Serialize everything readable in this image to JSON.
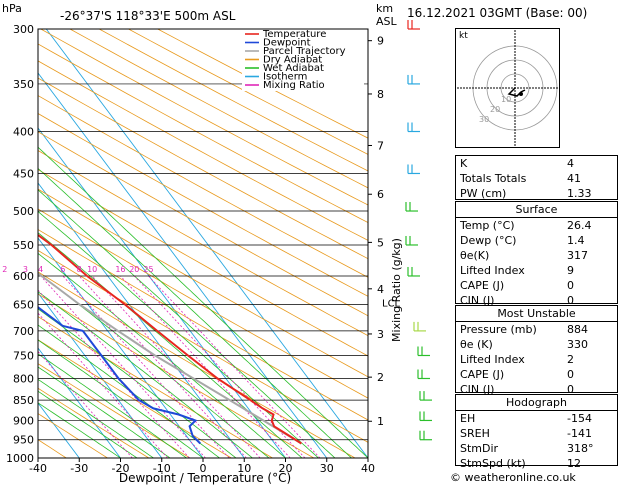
{
  "header": {
    "hpa_label": "hPa",
    "location": "-26°37'S  118°33'E  500m  ASL",
    "km_label": "km",
    "asl_label": "ASL",
    "datetime": "16.12.2021  03GMT  (Base: 00)"
  },
  "legend": [
    {
      "label": "Temperature",
      "color": "#e8251f"
    },
    {
      "label": "Dewpoint",
      "color": "#1f49d8"
    },
    {
      "label": "Parcel Trajectory",
      "color": "#a8a8a8"
    },
    {
      "label": "Dry Adiabat",
      "color": "#e89a1e"
    },
    {
      "label": "Wet Adiabat",
      "color": "#2bbf2b"
    },
    {
      "label": "Isotherm",
      "color": "#2aa8e0"
    },
    {
      "label": "Mixing Ratio",
      "color": "#e028b8"
    }
  ],
  "chart_data": {
    "type": "skew-t",
    "x_axis": {
      "label": "Dewpoint / Temperature (°C)",
      "ticks": [
        -40,
        -30,
        -20,
        -10,
        0,
        10,
        20,
        30,
        40
      ]
    },
    "pressure_levels": [
      300,
      350,
      400,
      450,
      500,
      550,
      600,
      650,
      700,
      750,
      800,
      850,
      900,
      950,
      1000
    ],
    "km_ticks": [
      {
        "km": "1",
        "p": 902
      },
      {
        "km": "2",
        "p": 797
      },
      {
        "km": "3",
        "p": 706
      },
      {
        "km": "4",
        "p": 622
      },
      {
        "km": "5",
        "p": 546
      },
      {
        "km": "6",
        "p": 477
      },
      {
        "km": "7",
        "p": 416
      },
      {
        "km": "8",
        "p": 360
      },
      {
        "km": "9",
        "p": 310
      }
    ],
    "lcl_label": "LCL",
    "lcl_pressure": 646,
    "mixing_ratio_axis_label": "Mixing Ratio (g/kg)",
    "mixing_ratio_labels": [
      "1",
      "2",
      "3",
      "4",
      "6",
      "8",
      "10",
      "16",
      "20",
      "25"
    ],
    "mixing_ratio_values": [
      1,
      2,
      3,
      4,
      6,
      8,
      10,
      16,
      20,
      25
    ],
    "temperature": [
      [
        960,
        26.5
      ],
      [
        940,
        25
      ],
      [
        915,
        23
      ],
      [
        900,
        23.5
      ],
      [
        885,
        25
      ],
      [
        870,
        23.5
      ],
      [
        850,
        22
      ],
      [
        800,
        18
      ],
      [
        750,
        15
      ],
      [
        700,
        12
      ],
      [
        650,
        9
      ],
      [
        600,
        5
      ],
      [
        550,
        2
      ],
      [
        500,
        -3
      ],
      [
        450,
        -9
      ],
      [
        400,
        -16
      ],
      [
        350,
        -24
      ],
      [
        330,
        -28
      ],
      [
        310,
        -31
      ],
      [
        300,
        -31
      ]
    ],
    "dewpoint": [
      [
        960,
        2
      ],
      [
        940,
        1.5
      ],
      [
        915,
        2.5
      ],
      [
        900,
        5
      ],
      [
        885,
        2
      ],
      [
        870,
        -3
      ],
      [
        850,
        -5
      ],
      [
        800,
        -6
      ],
      [
        750,
        -6
      ],
      [
        700,
        -6
      ],
      [
        690,
        -10
      ],
      [
        650,
        -13
      ],
      [
        600,
        -14
      ],
      [
        575,
        -14
      ],
      [
        570,
        -17
      ],
      [
        560,
        -40
      ],
      [
        550,
        -25
      ],
      [
        530,
        -16
      ],
      [
        500,
        -28
      ],
      [
        480,
        -35
      ],
      [
        450,
        -34
      ],
      [
        420,
        -34
      ],
      [
        400,
        -40
      ],
      [
        380,
        -40
      ],
      [
        350,
        -35
      ],
      [
        320,
        -45
      ],
      [
        300,
        -46
      ]
    ],
    "parcel": [
      [
        960,
        26.5
      ],
      [
        850,
        17
      ],
      [
        750,
        7
      ],
      [
        700,
        2.5
      ],
      [
        650,
        -2
      ],
      [
        600,
        -6
      ],
      [
        550,
        -11
      ],
      [
        500,
        -17
      ],
      [
        450,
        -24
      ],
      [
        400,
        -31
      ],
      [
        350,
        -39
      ],
      [
        300,
        -48
      ]
    ]
  },
  "hodograph": {
    "label": "kt",
    "ring_labels": [
      "10",
      "20",
      "30"
    ]
  },
  "indices": [
    {
      "label": "K",
      "value": "4"
    },
    {
      "label": "Totals Totals",
      "value": "41"
    },
    {
      "label": "PW (cm)",
      "value": "1.33"
    }
  ],
  "surface": {
    "title": "Surface",
    "rows": [
      {
        "label": "Temp (°C)",
        "value": "26.4"
      },
      {
        "label": "Dewp (°C)",
        "value": "1.4"
      },
      {
        "label": "θe(K)",
        "value": "317"
      },
      {
        "label": "Lifted Index",
        "value": "9"
      },
      {
        "label": "CAPE (J)",
        "value": "0"
      },
      {
        "label": "CIN (J)",
        "value": "0"
      }
    ]
  },
  "most_unstable": {
    "title": "Most Unstable",
    "rows": [
      {
        "label": "Pressure (mb)",
        "value": "884"
      },
      {
        "label": "θe (K)",
        "value": "330"
      },
      {
        "label": "Lifted Index",
        "value": "2"
      },
      {
        "label": "CAPE (J)",
        "value": "0"
      },
      {
        "label": "CIN (J)",
        "value": "0"
      }
    ]
  },
  "hodograph_table": {
    "title": "Hodograph",
    "rows": [
      {
        "label": "EH",
        "value": "-154"
      },
      {
        "label": "SREH",
        "value": "-141"
      },
      {
        "label": "StmDir",
        "value": "318°"
      },
      {
        "label": "StmSpd (kt)",
        "value": "12"
      }
    ]
  },
  "copyright": "© weatheronline.co.uk"
}
